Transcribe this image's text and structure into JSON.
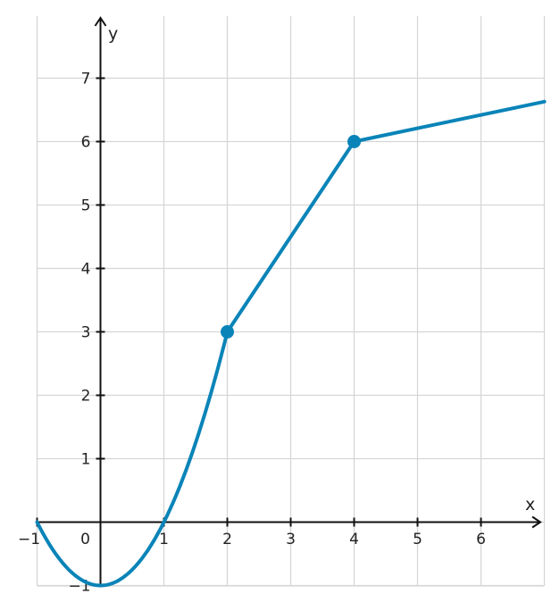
{
  "chart_data": {
    "type": "line",
    "xlabel": "x",
    "ylabel": "y",
    "xlim": [
      -1,
      7
    ],
    "ylim": [
      -1,
      8
    ],
    "grid": true,
    "x_ticks": [
      -1,
      0,
      1,
      2,
      3,
      4,
      5,
      6
    ],
    "x_tick_labels": [
      "−1",
      "0",
      "1",
      "2",
      "3",
      "4",
      "5",
      "6"
    ],
    "y_ticks": [
      -1,
      1,
      2,
      3,
      4,
      5,
      6,
      7
    ],
    "y_tick_labels": [
      "−1",
      "1",
      "2",
      "3",
      "4",
      "5",
      "6",
      "7"
    ],
    "series": [
      {
        "pieces": [
          {
            "formula": "y = x^2 - 1",
            "x_range": [
              -1,
              2
            ]
          },
          {
            "formula": "y = 1.5x",
            "x_range": [
              2,
              4
            ]
          },
          {
            "formula": "y = 6 + 0.21(x - 4)",
            "x_range": [
              4,
              7
            ]
          }
        ],
        "points": [
          {
            "x": -1,
            "y": 0
          },
          {
            "x": 0,
            "y": -1
          },
          {
            "x": 1,
            "y": 0
          },
          {
            "x": 2,
            "y": 3
          },
          {
            "x": 3,
            "y": 4.5
          },
          {
            "x": 4,
            "y": 6
          },
          {
            "x": 5,
            "y": 6.21
          },
          {
            "x": 6,
            "y": 6.42
          },
          {
            "x": 7,
            "y": 6.63
          }
        ],
        "marked_points": [
          {
            "x": 2,
            "y": 3
          },
          {
            "x": 4,
            "y": 6
          }
        ]
      }
    ],
    "colors": {
      "line": "#0a84b8",
      "axis": "#111111",
      "grid": "#d6d6d6"
    }
  }
}
